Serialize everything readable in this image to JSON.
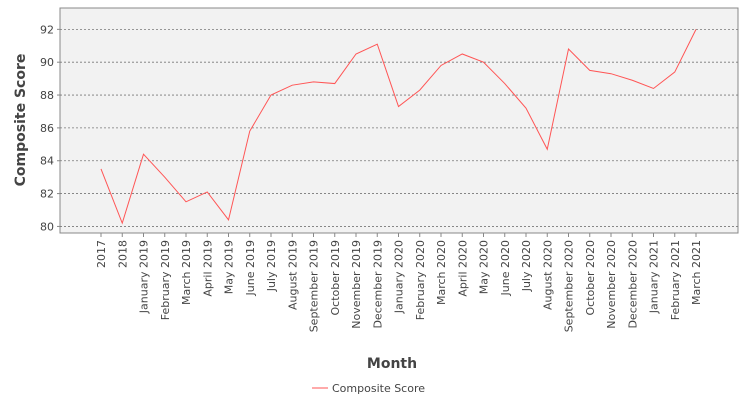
{
  "chart_data": {
    "type": "line",
    "x_label": "Month",
    "y_label": "Composite Score",
    "categories": [
      "2017",
      "2018",
      "January 2019",
      "February 2019",
      "March 2019",
      "April 2019",
      "May 2019",
      "June 2019",
      "July 2019",
      "August 2019",
      "September 2019",
      "October 2019",
      "November 2019",
      "December 2019",
      "January 2020",
      "February 2020",
      "March 2020",
      "April 2020",
      "May 2020",
      "June 2020",
      "July 2020",
      "August 2020",
      "September 2020",
      "October 2020",
      "November 2020",
      "December 2020",
      "January 2021",
      "February 2021",
      "March 2021"
    ],
    "series": [
      {
        "name": "Composite Score",
        "color": "#ff5555",
        "values": [
          83.5,
          80.2,
          84.4,
          83.0,
          81.5,
          82.1,
          80.4,
          85.8,
          88.0,
          88.6,
          88.8,
          88.7,
          90.5,
          91.1,
          87.3,
          88.3,
          89.8,
          90.5,
          90.0,
          88.7,
          87.2,
          84.7,
          90.8,
          89.5,
          89.3,
          88.9,
          88.4,
          89.4,
          92.0
        ]
      }
    ],
    "ylim": [
      79.6,
      93.3
    ],
    "yticks": [
      80,
      82,
      84,
      86,
      88,
      90,
      92
    ],
    "grid": true,
    "legend": "bottom"
  }
}
